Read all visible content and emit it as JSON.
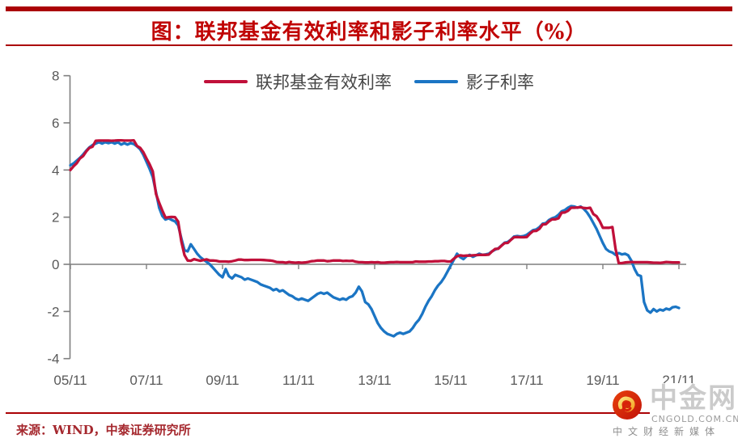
{
  "header": {
    "title": "图：联邦基金有效利率和影子利率水平（%）",
    "title_color": "#C00404",
    "rule_color": "#AB0205"
  },
  "legend": {
    "items": [
      {
        "label": "联邦基金有效利率",
        "color": "#C0103A"
      },
      {
        "label": "影子利率",
        "color": "#1B75C4"
      }
    ]
  },
  "footer": {
    "source": "来源：WIND，中泰证券研究所"
  },
  "logo": {
    "name": "中金网",
    "domain": "CNGOLD.COM.CN",
    "tagline": "中文财经新媒体",
    "icon_color": "#D9200A"
  },
  "chart_data": {
    "type": "line",
    "title": "图：联邦基金有效利率和影子利率水平（%）",
    "x_start": "2005-11",
    "x_end": "2021-11",
    "x_interval": "monthly",
    "x_tick_labels": [
      "05/11",
      "07/11",
      "09/11",
      "11/11",
      "13/11",
      "15/11",
      "17/11",
      "19/11",
      "21/11"
    ],
    "y_ticks": [
      8,
      6,
      4,
      2,
      0,
      -2,
      -4
    ],
    "ylim": [
      -4,
      8
    ],
    "grid": false,
    "legend_position": "top",
    "axis_color": "#7F7F7F",
    "tick_label_color": "#595959",
    "series": [
      {
        "name": "联邦基金有效利率",
        "color": "#C0103A",
        "values": [
          4.0,
          4.16,
          4.29,
          4.49,
          4.59,
          4.79,
          4.94,
          4.99,
          5.24,
          5.25,
          5.25,
          5.25,
          5.25,
          5.24,
          5.25,
          5.26,
          5.26,
          5.25,
          5.25,
          5.25,
          5.26,
          5.02,
          4.94,
          4.76,
          4.49,
          4.24,
          3.94,
          2.98,
          2.61,
          2.28,
          1.98,
          2.0,
          2.01,
          2.0,
          1.81,
          0.97,
          0.39,
          0.16,
          0.15,
          0.22,
          0.18,
          0.15,
          0.18,
          0.21,
          0.16,
          0.16,
          0.15,
          0.12,
          0.12,
          0.12,
          0.11,
          0.13,
          0.16,
          0.2,
          0.2,
          0.18,
          0.18,
          0.19,
          0.19,
          0.19,
          0.19,
          0.18,
          0.17,
          0.16,
          0.14,
          0.1,
          0.09,
          0.09,
          0.07,
          0.1,
          0.08,
          0.07,
          0.08,
          0.07,
          0.08,
          0.1,
          0.13,
          0.14,
          0.16,
          0.16,
          0.16,
          0.13,
          0.14,
          0.16,
          0.16,
          0.16,
          0.14,
          0.15,
          0.14,
          0.15,
          0.11,
          0.09,
          0.09,
          0.08,
          0.08,
          0.09,
          0.08,
          0.09,
          0.07,
          0.07,
          0.08,
          0.09,
          0.09,
          0.1,
          0.09,
          0.09,
          0.09,
          0.09,
          0.09,
          0.12,
          0.11,
          0.11,
          0.11,
          0.12,
          0.12,
          0.13,
          0.13,
          0.14,
          0.14,
          0.12,
          0.12,
          0.24,
          0.34,
          0.38,
          0.36,
          0.37,
          0.37,
          0.38,
          0.39,
          0.4,
          0.4,
          0.4,
          0.41,
          0.54,
          0.65,
          0.66,
          0.79,
          0.9,
          0.91,
          1.04,
          1.15,
          1.16,
          1.15,
          1.15,
          1.16,
          1.3,
          1.41,
          1.42,
          1.51,
          1.69,
          1.7,
          1.82,
          1.91,
          1.91,
          1.95,
          2.19,
          2.2,
          2.27,
          2.4,
          2.4,
          2.41,
          2.42,
          2.39,
          2.38,
          2.4,
          2.13,
          2.04,
          1.83,
          1.55,
          1.55,
          1.55,
          1.58,
          0.65,
          0.05,
          0.05,
          0.08,
          0.09,
          0.1,
          0.09,
          0.09,
          0.09,
          0.09,
          0.09,
          0.08,
          0.07,
          0.07,
          0.06,
          0.08,
          0.1,
          0.09,
          0.08,
          0.08,
          0.08
        ]
      },
      {
        "name": "影子利率",
        "color": "#1B75C4",
        "values": [
          4.2,
          4.28,
          4.4,
          4.52,
          4.66,
          4.82,
          4.96,
          5.06,
          5.12,
          5.18,
          5.12,
          5.18,
          5.14,
          5.18,
          5.12,
          5.18,
          5.08,
          5.14,
          5.08,
          5.14,
          5.1,
          5.0,
          4.88,
          4.65,
          4.35,
          4.05,
          3.7,
          3.05,
          2.4,
          2.05,
          1.9,
          1.95,
          1.88,
          1.82,
          1.65,
          1.1,
          0.6,
          0.55,
          0.85,
          0.65,
          0.45,
          0.3,
          0.2,
          0.1,
          0.0,
          -0.15,
          -0.3,
          -0.45,
          -0.55,
          -0.2,
          -0.5,
          -0.6,
          -0.45,
          -0.5,
          -0.55,
          -0.65,
          -0.6,
          -0.65,
          -0.7,
          -0.75,
          -0.85,
          -0.9,
          -0.95,
          -1.0,
          -1.1,
          -1.05,
          -1.15,
          -1.1,
          -1.2,
          -1.3,
          -1.35,
          -1.45,
          -1.5,
          -1.45,
          -1.5,
          -1.55,
          -1.45,
          -1.35,
          -1.25,
          -1.2,
          -1.25,
          -1.2,
          -1.3,
          -1.4,
          -1.45,
          -1.5,
          -1.45,
          -1.5,
          -1.4,
          -1.35,
          -1.2,
          -0.95,
          -1.15,
          -1.6,
          -1.7,
          -1.9,
          -2.2,
          -2.5,
          -2.7,
          -2.85,
          -2.95,
          -3.0,
          -3.05,
          -2.95,
          -2.9,
          -2.95,
          -2.9,
          -2.85,
          -2.7,
          -2.5,
          -2.35,
          -2.1,
          -1.8,
          -1.55,
          -1.35,
          -1.1,
          -0.9,
          -0.75,
          -0.55,
          -0.3,
          -0.05,
          0.2,
          0.45,
          0.3,
          0.22,
          0.35,
          0.4,
          0.32,
          0.38,
          0.45,
          0.4,
          0.42,
          0.45,
          0.55,
          0.62,
          0.68,
          0.8,
          0.92,
          0.95,
          1.05,
          1.18,
          1.2,
          1.18,
          1.2,
          1.25,
          1.35,
          1.45,
          1.48,
          1.58,
          1.72,
          1.75,
          1.88,
          1.95,
          2.0,
          2.1,
          2.25,
          2.3,
          2.4,
          2.47,
          2.45,
          2.4,
          2.45,
          2.35,
          2.2,
          2.0,
          1.75,
          1.5,
          1.2,
          0.9,
          0.65,
          0.55,
          0.5,
          0.4,
          0.48,
          0.42,
          0.45,
          0.38,
          0.15,
          -0.2,
          -0.45,
          -0.5,
          -1.6,
          -1.95,
          -2.05,
          -1.9,
          -2.0,
          -1.92,
          -1.96,
          -1.88,
          -1.92,
          -1.82,
          -1.8,
          -1.85
        ]
      }
    ]
  }
}
